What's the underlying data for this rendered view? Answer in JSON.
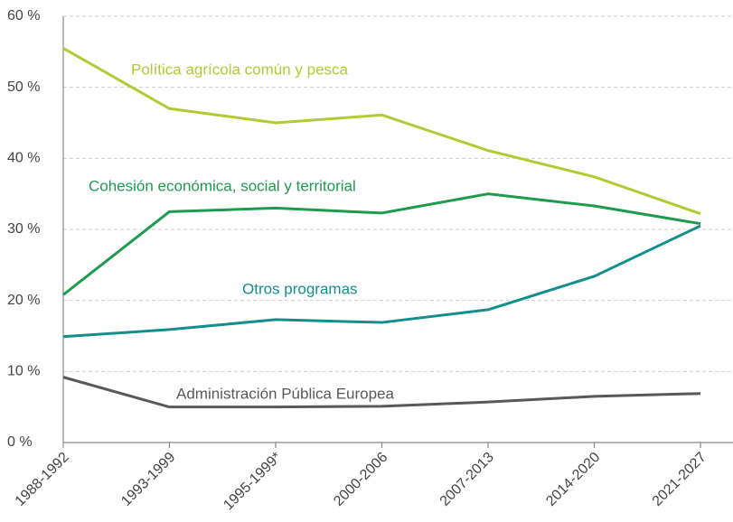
{
  "chart_data": {
    "type": "line",
    "categories": [
      "1988-1992",
      "1993-1999",
      "1995-1999*",
      "2000-2006",
      "2007-2013",
      "2014-2020",
      "2021-2027"
    ],
    "series": [
      {
        "name": "Política agrícola común y pesca",
        "color": "#b5c934",
        "values": [
          55.5,
          47.0,
          45.0,
          46.1,
          41.1,
          37.4,
          32.2
        ]
      },
      {
        "name": "Cohesión económica, social y territorial",
        "color": "#1e9b4f",
        "values": [
          20.8,
          32.5,
          33.0,
          32.3,
          35.0,
          33.3,
          30.8
        ]
      },
      {
        "name": "Otros programas",
        "color": "#138f8b",
        "values": [
          14.9,
          15.9,
          17.3,
          16.9,
          18.7,
          23.4,
          30.5
        ]
      },
      {
        "name": "Administración Pública Europea",
        "color": "#595959",
        "values": [
          9.2,
          5.0,
          5.0,
          5.1,
          5.7,
          6.5,
          6.9
        ]
      }
    ],
    "ylim": [
      0,
      60
    ],
    "yticks": [
      {
        "value": 0,
        "label": "0 %"
      },
      {
        "value": 10,
        "label": "10 %"
      },
      {
        "value": 20,
        "label": "20 %"
      },
      {
        "value": 30,
        "label": "30 %"
      },
      {
        "value": 40,
        "label": "40 %"
      },
      {
        "value": 50,
        "label": "50 %"
      },
      {
        "value": 60,
        "label": "60 %"
      }
    ],
    "grid": true
  }
}
